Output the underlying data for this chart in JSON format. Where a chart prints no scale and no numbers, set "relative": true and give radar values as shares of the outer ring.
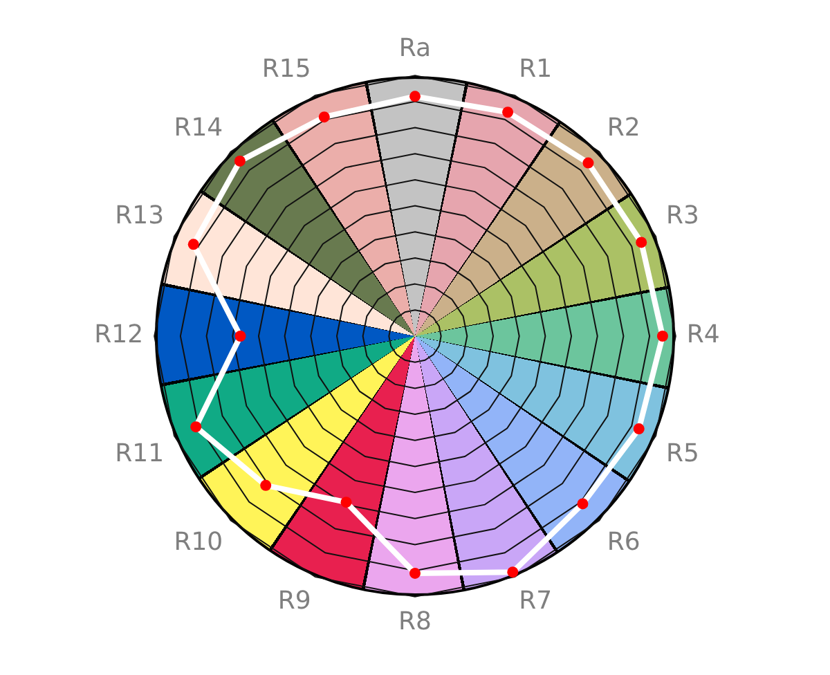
{
  "chart_data": {
    "type": "radar",
    "categories": [
      "Ra",
      "R1",
      "R2",
      "R3",
      "R4",
      "R5",
      "R6",
      "R7",
      "R8",
      "R9",
      "R10",
      "R11",
      "R12",
      "R13",
      "R14",
      "R15"
    ],
    "relative": true,
    "grid": true,
    "marker": "circle",
    "series": [
      {
        "color": "#ffffff",
        "values": [
          0.92,
          0.93,
          0.94,
          0.94,
          0.95,
          0.93,
          0.91,
          0.98,
          0.91,
          0.69,
          0.81,
          0.91,
          0.67,
          0.92,
          0.95,
          0.91
        ]
      }
    ]
  }
}
